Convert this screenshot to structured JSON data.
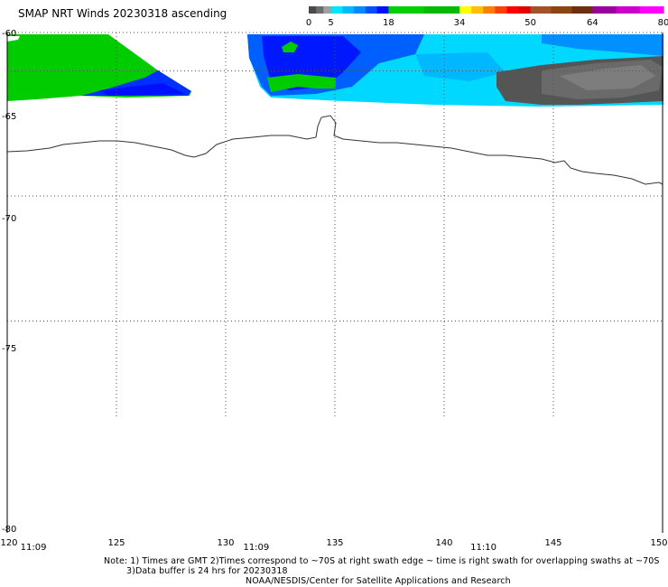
{
  "title": "SMAP NRT Winds 20230318 ascending",
  "colorbar": {
    "ticks": [
      "0",
      "5",
      "18",
      "34",
      "50",
      "64",
      "80"
    ],
    "values": [
      0,
      5,
      18,
      34,
      50,
      64,
      80
    ],
    "segments": [
      {
        "from": 0,
        "to": 5,
        "colors": [
          "#4a4a4a",
          "#6e6e6e",
          "#a0a0a0"
        ]
      },
      {
        "from": 5,
        "to": 18,
        "colors": [
          "#00e5ff",
          "#00b8ff",
          "#008cff",
          "#0050ff",
          "#0010ff"
        ]
      },
      {
        "from": 18,
        "to": 34,
        "colors": [
          "#00d000",
          "#00bb00"
        ]
      },
      {
        "from": 34,
        "to": 50,
        "colors": [
          "#ffff00",
          "#ffc000",
          "#ff8000",
          "#ff4000",
          "#ff0000",
          "#e00000"
        ]
      },
      {
        "from": 50,
        "to": 64,
        "colors": [
          "#a0522d",
          "#8b4513",
          "#6b3010"
        ]
      },
      {
        "from": 64,
        "to": 80,
        "colors": [
          "#9a009a",
          "#cc00cc",
          "#ff00ff"
        ]
      }
    ]
  },
  "map": {
    "lat_range": [
      -60,
      -80
    ],
    "lon_range": [
      120,
      150
    ],
    "lat_labels": [
      "-60",
      "-65",
      "-70",
      "-75",
      "-80"
    ],
    "lon_labels": [
      "120",
      "125",
      "130",
      "135",
      "140",
      "145",
      "150"
    ],
    "grid_lats": [
      -65,
      -70,
      -75
    ],
    "grid_lons": [
      125,
      130,
      135,
      140,
      145
    ]
  },
  "times": [
    {
      "label": "11:09",
      "lon": 121.2
    },
    {
      "label": "11:09",
      "lon": 131.4
    },
    {
      "label": "11:10",
      "lon": 141.8
    }
  ],
  "notes": {
    "line1": "Note: 1) Times are GMT 2)Times correspond to ~70S at right swath edge ~ time is right swath for overlapping swaths at ~70S",
    "line2": "3)Data buffer is 24 hrs for 20230318",
    "line3": "NOAA/NESDIS/Center for Satellite Applications and Research"
  },
  "colors": {
    "green": "#00cc00",
    "blue_dark": "#0018ff",
    "blue_mid": "#0080ff",
    "cyan": "#00d8ff",
    "gray_dark": "#555555",
    "gray_light": "#7a7a7a",
    "coast": "#333333",
    "grid": "#555555"
  }
}
